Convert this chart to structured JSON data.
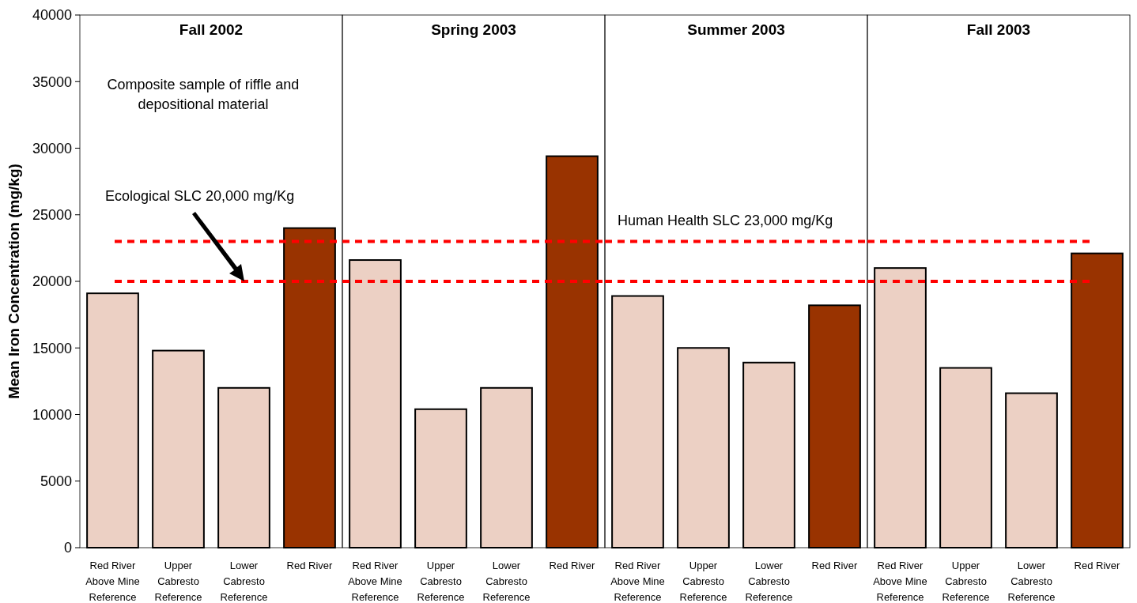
{
  "chart_data": [
    {
      "type": "bar",
      "title": "Fall 2002",
      "ylabel": "Mean Iron Concentration (mg/kg)",
      "categories": [
        "Red River Above Mine Reference",
        "Upper Cabresto Reference",
        "Lower Cabresto Reference",
        "Red River"
      ],
      "values": [
        19100,
        14800,
        12000,
        24000
      ],
      "colors": [
        "#ecd0c4",
        "#ecd0c4",
        "#ecd0c4",
        "#993300"
      ],
      "ylim": [
        0,
        40000
      ],
      "yticks": [
        0,
        5000,
        10000,
        15000,
        20000,
        25000,
        30000,
        35000,
        40000
      ],
      "grid": false,
      "ref_lines": [
        {
          "axis": "y",
          "value": 23000,
          "color": "#ff0000",
          "line_style": "dashed"
        },
        {
          "axis": "y",
          "value": 20000,
          "color": "#ff0000",
          "line_style": "dashed"
        }
      ],
      "annotations": [
        "Composite sample of riffle and depositional material",
        "Ecological SLC 20,000 mg/Kg"
      ]
    },
    {
      "type": "bar",
      "title": "Spring 2003",
      "categories": [
        "Red River Above Mine Reference",
        "Upper Cabresto Reference",
        "Lower Cabresto Reference",
        "Red River"
      ],
      "values": [
        21600,
        10400,
        12000,
        29400
      ],
      "colors": [
        "#ecd0c4",
        "#ecd0c4",
        "#ecd0c4",
        "#993300"
      ],
      "ylim": [
        0,
        40000
      ],
      "yticks": [
        0,
        5000,
        10000,
        15000,
        20000,
        25000,
        30000,
        35000,
        40000
      ],
      "grid": false,
      "tick_labels": "x",
      "ref_lines": [
        {
          "axis": "y",
          "value": 23000,
          "color": "#ff0000",
          "line_style": "dashed"
        },
        {
          "axis": "y",
          "value": 20000,
          "color": "#ff0000",
          "line_style": "dashed"
        }
      ]
    },
    {
      "type": "bar",
      "title": "Summer 2003",
      "categories": [
        "Red River Above Mine Reference",
        "Upper Cabresto Reference",
        "Lower Cabresto Reference",
        "Red River"
      ],
      "values": [
        18900,
        15000,
        13900,
        18200
      ],
      "colors": [
        "#ecd0c4",
        "#ecd0c4",
        "#ecd0c4",
        "#993300"
      ],
      "ylim": [
        0,
        40000
      ],
      "yticks": [
        0,
        5000,
        10000,
        15000,
        20000,
        25000,
        30000,
        35000,
        40000
      ],
      "grid": false,
      "tick_labels": "x",
      "ref_lines": [
        {
          "axis": "y",
          "value": 23000,
          "label": "Human Health SLC 23,000 mg/Kg",
          "color": "#ff0000",
          "line_style": "dashed"
        },
        {
          "axis": "y",
          "value": 20000,
          "color": "#ff0000",
          "line_style": "dashed"
        }
      ]
    },
    {
      "type": "bar",
      "title": "Fall 2003",
      "categories": [
        "Red River Above Mine Reference",
        "Upper Cabresto Reference",
        "Lower Cabresto Reference",
        "Red River"
      ],
      "values": [
        21000,
        13500,
        11600,
        22100
      ],
      "colors": [
        "#ecd0c4",
        "#ecd0c4",
        "#ecd0c4",
        "#993300"
      ],
      "ylim": [
        0,
        40000
      ],
      "yticks": [
        0,
        5000,
        10000,
        15000,
        20000,
        25000,
        30000,
        35000,
        40000
      ],
      "grid": false,
      "tick_labels": "x",
      "ref_lines": [
        {
          "axis": "y",
          "value": 23000,
          "color": "#ff0000",
          "line_style": "dashed"
        },
        {
          "axis": "y",
          "value": 20000,
          "color": "#ff0000",
          "line_style": "dashed"
        }
      ]
    }
  ]
}
